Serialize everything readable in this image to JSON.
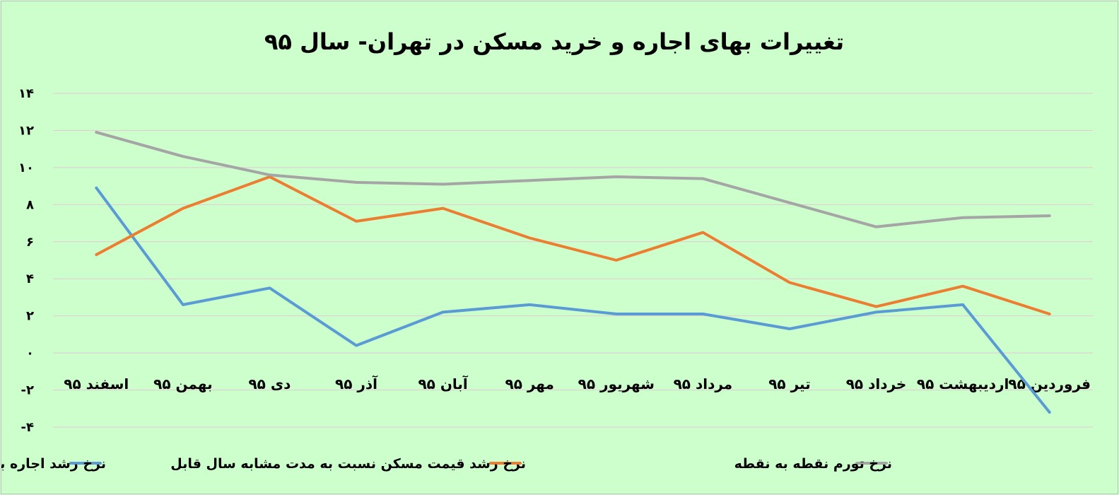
{
  "chart_data": {
    "type": "line",
    "title": "تغییرات بهای اجاره و خرید مسکن در تهران- سال ۹۵",
    "categories": [
      "فروردین ۹۵",
      "اردیبهشت ۹۵",
      "خرداد ۹۵",
      "تیر ۹۵",
      "مرداد ۹۵",
      "شهریور ۹۵",
      "مهر ۹۵",
      "آبان ۹۵",
      "آذر ۹۵",
      "دی ۹۵",
      "بهمن ۹۵",
      "اسفند ۹۵"
    ],
    "y_ticks": [
      -4,
      -2,
      0,
      2,
      4,
      6,
      8,
      10,
      12,
      14
    ],
    "y_tick_labels": [
      "-۴",
      "-۲",
      "۰",
      "۲",
      "۴",
      "۶",
      "۸",
      "۱۰",
      "۱۲",
      "۱۴"
    ],
    "ylim": [
      -4,
      14
    ],
    "grid": true,
    "legend_position": "bottom",
    "series": [
      {
        "name": "نرخ رشد اجاره بها نسبت به مدت مشابه سال قبل",
        "color": "#5b9bd5",
        "values": [
          -3.2,
          2.6,
          2.2,
          1.3,
          2.1,
          2.1,
          2.6,
          2.2,
          0.4,
          3.5,
          2.6,
          8.9
        ]
      },
      {
        "name": "نرخ رشد قیمت مسکن نسبت به مدت مشابه سال قابل",
        "color": "#ed7d31",
        "values": [
          2.1,
          3.6,
          2.5,
          3.8,
          6.5,
          5.0,
          6.2,
          7.8,
          7.1,
          9.5,
          7.8,
          5.3
        ]
      },
      {
        "name": "نرخ تورم نقطه به نقطه",
        "color": "#a5a5a5",
        "values": [
          7.4,
          7.3,
          6.8,
          8.1,
          9.4,
          9.5,
          9.3,
          9.1,
          9.2,
          9.6,
          10.6,
          11.9
        ]
      }
    ]
  }
}
